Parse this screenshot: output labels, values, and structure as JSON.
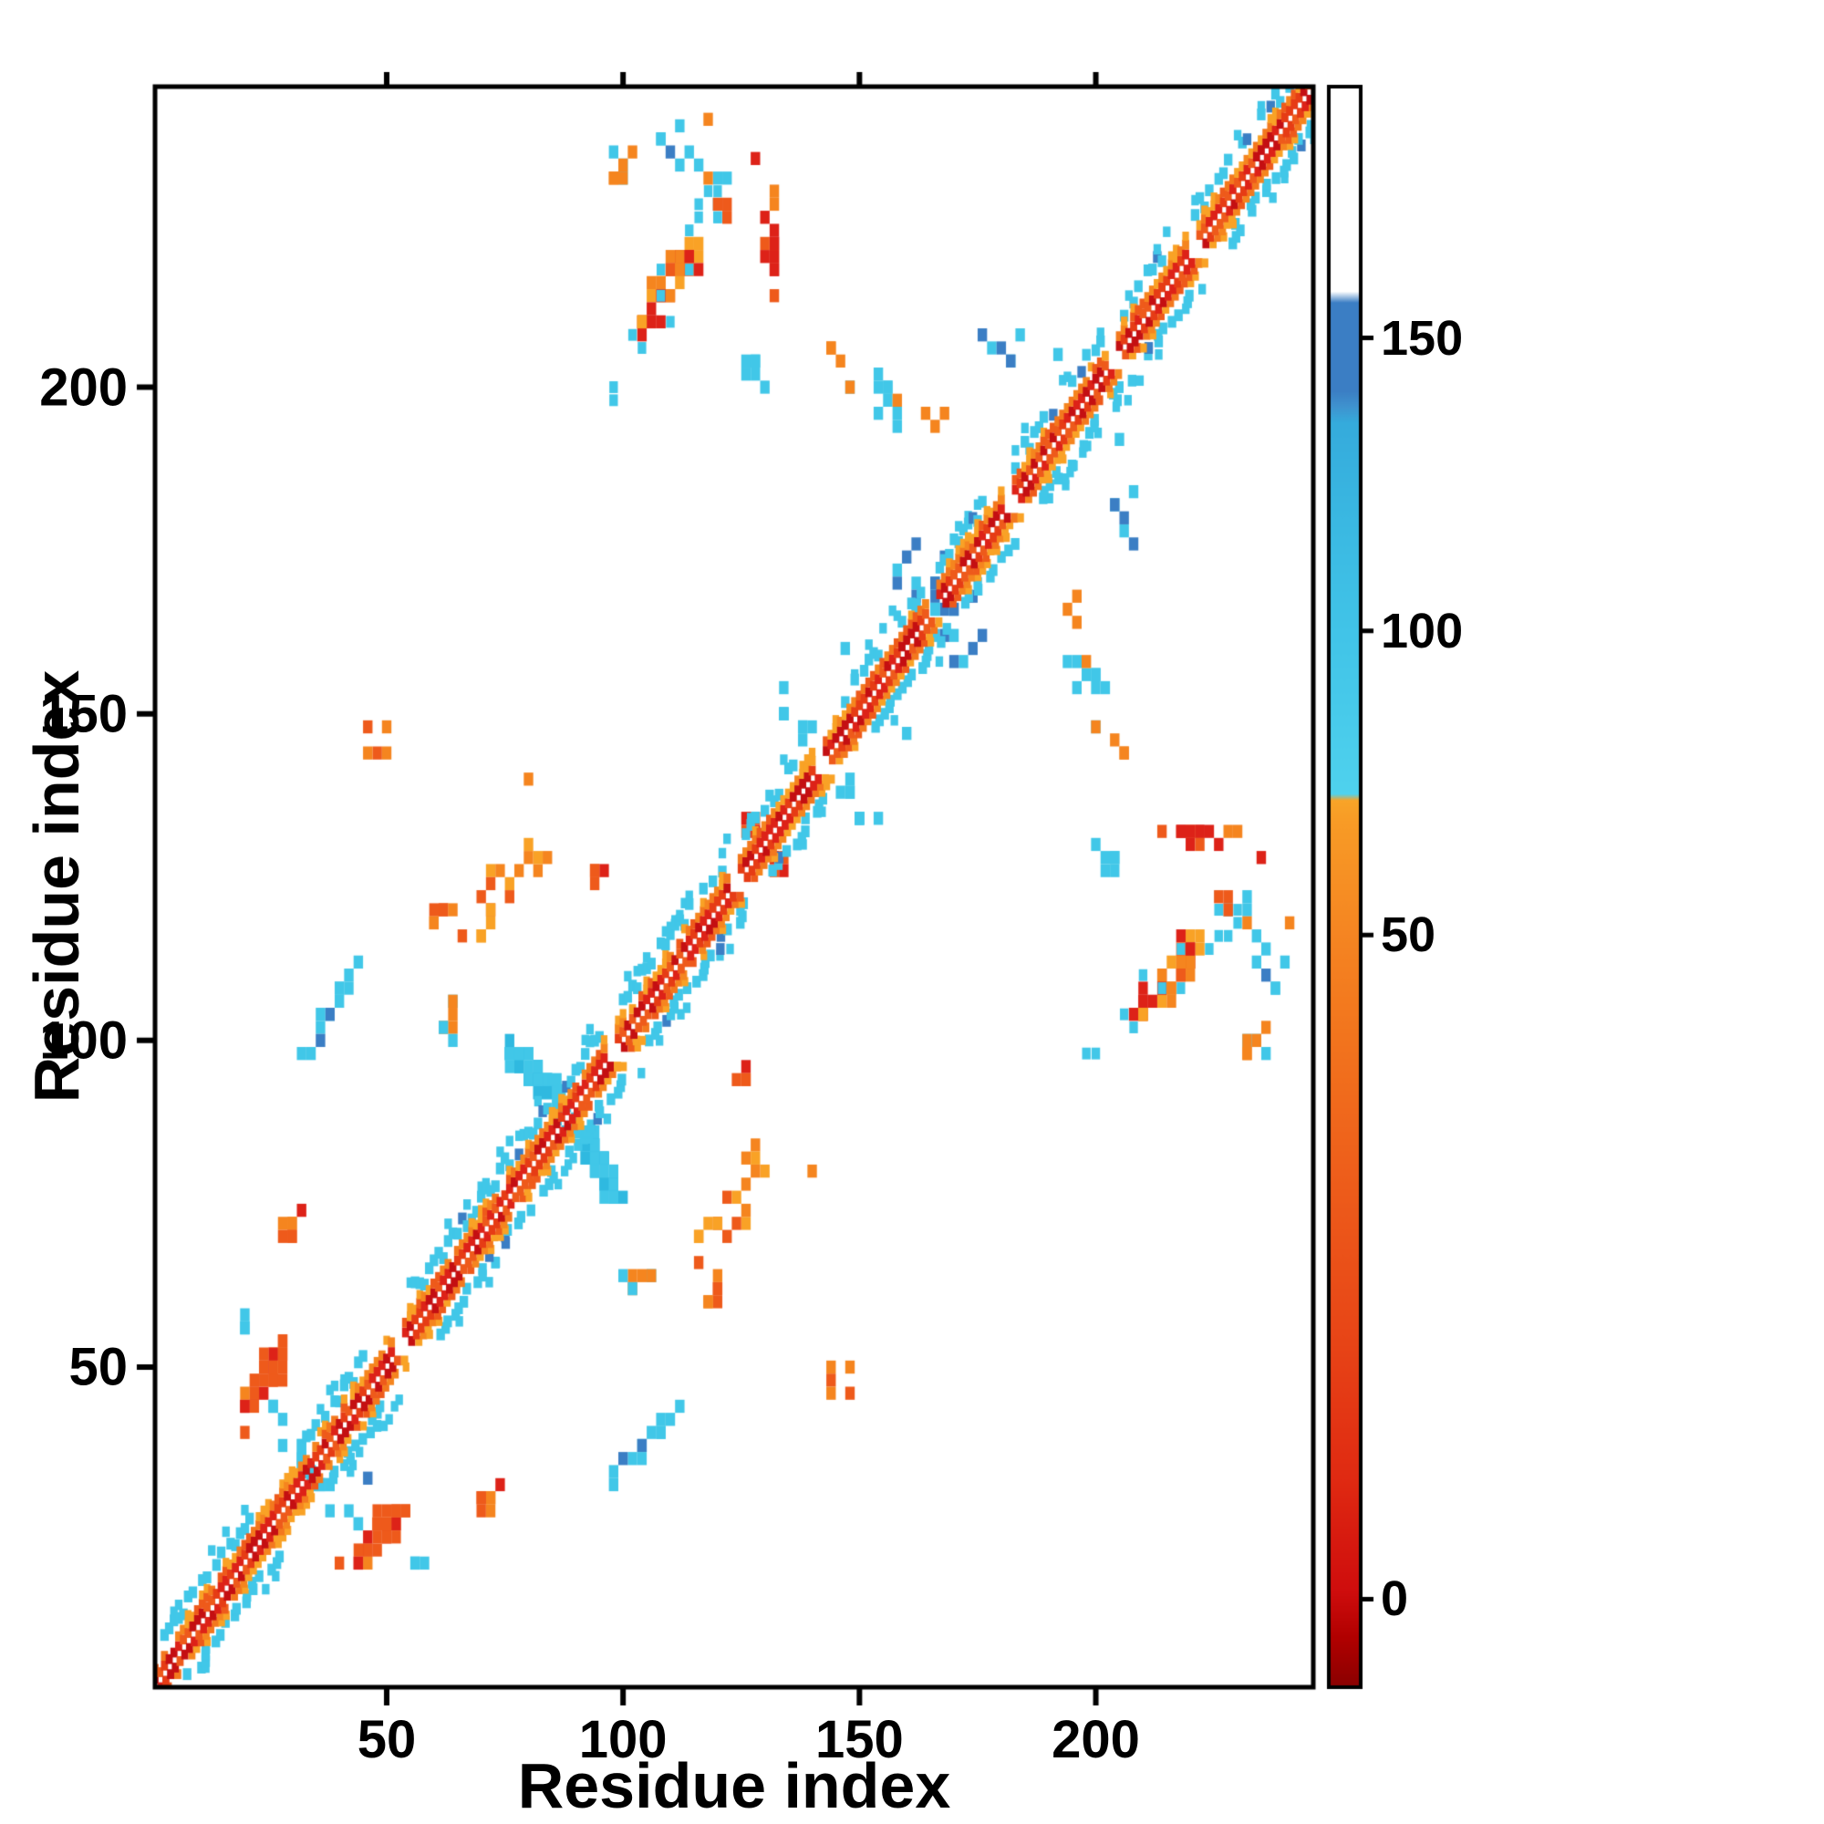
{
  "chart_data": {
    "type": "heatmap",
    "title": "",
    "xlabel": "Residue index",
    "ylabel": "Residue index",
    "x_range": [
      1,
      245
    ],
    "y_range": [
      1,
      245
    ],
    "x_ticks": [
      50,
      100,
      150,
      200
    ],
    "y_ticks": [
      50,
      100,
      150,
      200
    ],
    "grid": false,
    "background": "#ffffff",
    "colorbar": {
      "position": "right",
      "ticks": [
        {
          "value": 0,
          "frac": 0.055
        },
        {
          "value": 50,
          "frac": 0.47
        },
        {
          "value": 100,
          "frac": 0.66
        },
        {
          "value": 150,
          "frac": 0.843
        }
      ],
      "stops": [
        [
          0.0,
          "#8a0000"
        ],
        [
          0.03,
          "#b00000"
        ],
        [
          0.06,
          "#cf0d0d"
        ],
        [
          0.13,
          "#e02a12"
        ],
        [
          0.22,
          "#e84617"
        ],
        [
          0.32,
          "#ee5e1b"
        ],
        [
          0.42,
          "#f3781e"
        ],
        [
          0.47,
          "#f58522"
        ],
        [
          0.54,
          "#f89b26"
        ],
        [
          0.554,
          "#f9a428"
        ],
        [
          0.558,
          "#4fd2ee"
        ],
        [
          0.62,
          "#46c9ea"
        ],
        [
          0.66,
          "#41c4e8"
        ],
        [
          0.73,
          "#3ab8e2"
        ],
        [
          0.79,
          "#35abdc"
        ],
        [
          0.8,
          "#3f93cf"
        ],
        [
          0.81,
          "#3b7ec4"
        ],
        [
          0.865,
          "#3b7ec4"
        ],
        [
          0.872,
          "#ffffff"
        ],
        [
          1.0,
          "#ffffff"
        ]
      ]
    },
    "palette": {
      "red": "#dd2218",
      "dark_red": "#c40f12",
      "orange_red": "#ee5a1b",
      "orange": "#f5851f",
      "light_orange": "#f9a226",
      "cyan": "#41c7e8",
      "blue": "#3b7ec4"
    },
    "diagonal": {
      "range": [
        1,
        245
      ],
      "inner_colors": [
        "#dd2218",
        "#e63c15",
        "#c40f12",
        "#ee5a1b"
      ],
      "outer_colors": [
        "#f5851f",
        "#f3781e",
        "#f9a226",
        "#ee5a1b"
      ],
      "flank_color": "#41c7e8",
      "flank_blue": "#3b7ec4",
      "flank_segments": [
        [
          3,
          21
        ],
        [
          33,
          45
        ],
        [
          55,
          96
        ],
        [
          100,
          122
        ],
        [
          126,
          137
        ],
        [
          147,
          163
        ],
        [
          167,
          176
        ],
        [
          183,
          201
        ],
        [
          205,
          215
        ],
        [
          221,
          244
        ]
      ],
      "gaps": [
        52,
        97,
        123,
        141,
        165,
        181,
        203,
        220
      ]
    },
    "clusters": [
      {
        "cx": 24,
        "cy": 48,
        "rx": 5,
        "ry": 3,
        "orient": "diag",
        "n": 26,
        "colors": [
          "#ee5a1b",
          "#f5851f",
          "#dd2218",
          "#ee5a1b"
        ]
      },
      {
        "cx": 31,
        "cy": 37,
        "rx": 6,
        "ry": 2,
        "orient": "anti",
        "n": 12,
        "colors": [
          "#41c7e8"
        ]
      },
      {
        "cx": 30,
        "cy": 71,
        "rx": 2,
        "ry": 3,
        "orient": "none",
        "n": 7,
        "colors": [
          "#dd2218",
          "#ee5a1b",
          "#f5851f"
        ]
      },
      {
        "cx": 41,
        "cy": 109,
        "rx": 3,
        "ry": 3,
        "orient": "none",
        "n": 6,
        "colors": [
          "#41c7e8"
        ]
      },
      {
        "cx": 63,
        "cy": 104,
        "rx": 3,
        "ry": 4,
        "orient": "none",
        "n": 7,
        "colors": [
          "#41c7e8",
          "#f5851f"
        ]
      },
      {
        "cx": 72,
        "cy": 121,
        "rx": 4,
        "ry": 5,
        "orient": "none",
        "n": 11,
        "colors": [
          "#f5851f",
          "#ee5a1b",
          "#f9a226"
        ]
      },
      {
        "cx": 88,
        "cy": 88,
        "rx": 12,
        "ry": 3,
        "orient": "anti",
        "n": 46,
        "colors": [
          "#41c7e8",
          "#41c7e8",
          "#2fb9e0"
        ]
      },
      {
        "cx": 95,
        "cy": 125,
        "rx": 2,
        "ry": 2,
        "orient": "none",
        "n": 4,
        "colors": [
          "#dd2218",
          "#ee5a1b"
        ]
      },
      {
        "cx": 110,
        "cy": 216,
        "rx": 7,
        "ry": 3,
        "orient": "diag",
        "n": 34,
        "colors": [
          "#f5851f",
          "#ee5a1b",
          "#dd2218",
          "#f9a226"
        ],
        "fringe": {
          "color": "#41c7e8",
          "n": 16,
          "spread": 1.8
        }
      },
      {
        "cx": 100,
        "cy": 234,
        "rx": 4,
        "ry": 3,
        "orient": "none",
        "n": 8,
        "colors": [
          "#41c7e8",
          "#f5851f"
        ]
      },
      {
        "cx": 131,
        "cy": 221,
        "rx": 2,
        "ry": 10,
        "orient": "none",
        "n": 13,
        "colors": [
          "#f5851f",
          "#ee5a1b",
          "#dd2218"
        ]
      },
      {
        "cx": 128,
        "cy": 202,
        "rx": 3,
        "ry": 3,
        "orient": "none",
        "n": 6,
        "colors": [
          "#41c7e8"
        ]
      },
      {
        "cx": 137,
        "cy": 148,
        "rx": 4,
        "ry": 2,
        "orient": "anti",
        "n": 9,
        "colors": [
          "#41c7e8"
        ]
      },
      {
        "cx": 152,
        "cy": 200,
        "rx": 8,
        "ry": 4,
        "orient": "anti",
        "n": 14,
        "colors": [
          "#41c7e8",
          "#41c7e8",
          "#f5851f"
        ]
      },
      {
        "cx": 163,
        "cy": 172,
        "rx": 6,
        "ry": 6,
        "orient": "none",
        "n": 12,
        "colors": [
          "#41c7e8",
          "#3b7ec4"
        ]
      },
      {
        "cx": 207,
        "cy": 180,
        "rx": 3,
        "ry": 4,
        "orient": "none",
        "n": 6,
        "colors": [
          "#3b7ec4",
          "#41c7e8"
        ]
      },
      {
        "cx": 196,
        "cy": 166,
        "rx": 2,
        "ry": 2,
        "orient": "none",
        "n": 3,
        "colors": [
          "#f5851f"
        ]
      },
      {
        "cx": 120,
        "cy": 228,
        "rx": 4,
        "ry": 4,
        "orient": "none",
        "n": 7,
        "colors": [
          "#ee5a1b",
          "#f5851f",
          "#41c7e8"
        ]
      },
      {
        "cx": 112,
        "cy": 237,
        "rx": 5,
        "ry": 3,
        "orient": "none",
        "n": 7,
        "colors": [
          "#41c7e8",
          "#3b7ec4"
        ]
      },
      {
        "cx": 146,
        "cy": 47,
        "rx": 3,
        "ry": 3,
        "orient": "none",
        "n": 5,
        "colors": [
          "#f5851f",
          "#ee5a1b"
        ]
      },
      {
        "cx": 100,
        "cy": 35,
        "rx": 4,
        "ry": 4,
        "orient": "none",
        "n": 7,
        "colors": [
          "#3b7ec4",
          "#41c7e8"
        ]
      },
      {
        "cx": 57,
        "cy": 20,
        "rx": 2,
        "ry": 2,
        "orient": "none",
        "n": 3,
        "colors": [
          "#41c7e8"
        ]
      },
      {
        "cx": 119,
        "cy": 63,
        "rx": 3,
        "ry": 4,
        "orient": "none",
        "n": 7,
        "colors": [
          "#f5851f",
          "#ee5a1b"
        ]
      },
      {
        "cx": 128,
        "cy": 81,
        "rx": 3,
        "ry": 3,
        "orient": "none",
        "n": 6,
        "colors": [
          "#f5851f",
          "#f9a226"
        ]
      },
      {
        "cx": 133,
        "cy": 127,
        "rx": 2,
        "ry": 2,
        "orient": "none",
        "n": 4,
        "colors": [
          "#ee5a1b",
          "#dd2218"
        ]
      }
    ],
    "noise": [
      {
        "x": 46,
        "y": 33,
        "c": "#3b7ec4"
      },
      {
        "x": 140,
        "y": 80,
        "c": "#f5851f"
      },
      {
        "x": 80,
        "y": 140,
        "c": "#f5851f"
      },
      {
        "x": 160,
        "y": 147,
        "c": "#41c7e8"
      },
      {
        "x": 147,
        "y": 160,
        "c": "#41c7e8"
      },
      {
        "x": 235,
        "y": 128,
        "c": "#dd2218"
      },
      {
        "x": 128,
        "y": 235,
        "c": "#dd2218"
      },
      {
        "x": 241,
        "y": 118,
        "c": "#f5851f"
      },
      {
        "x": 118,
        "y": 241,
        "c": "#f5851f"
      },
      {
        "x": 205,
        "y": 192,
        "c": "#41c7e8"
      },
      {
        "x": 192,
        "y": 205,
        "c": "#41c7e8"
      }
    ]
  }
}
